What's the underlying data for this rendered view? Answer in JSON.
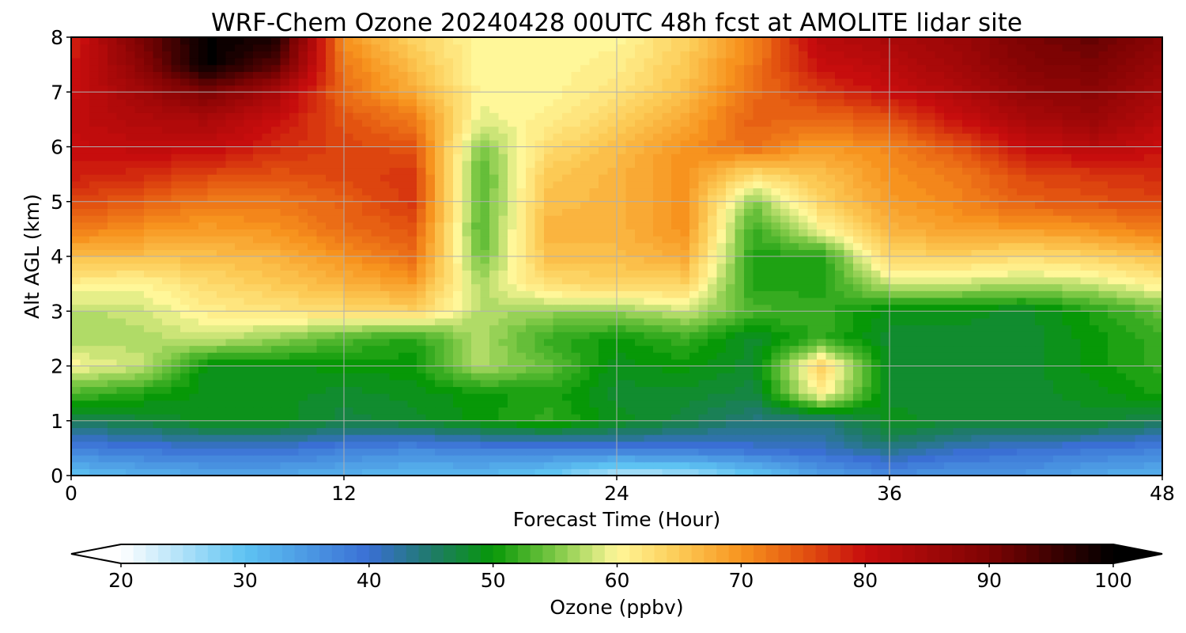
{
  "chart_data": {
    "type": "heatmap",
    "title": "WRF-Chem Ozone  20240428 00UTC 48h fcst at AMOLITE lidar site",
    "xlabel": "Forecast Time (Hour)",
    "ylabel": "Alt AGL (km)",
    "xlim": [
      0,
      48
    ],
    "ylim": [
      0,
      8
    ],
    "xticks": [
      "0",
      "12",
      "24",
      "36",
      "48"
    ],
    "yticks": [
      "0",
      "1",
      "2",
      "3",
      "4",
      "5",
      "6",
      "7",
      "8"
    ],
    "grid": true,
    "colorbar": {
      "label": "Ozone  (ppbv)",
      "min": 20,
      "max": 100,
      "extend": "both",
      "ticks": [
        "20",
        "30",
        "40",
        "50",
        "60",
        "70",
        "80",
        "90",
        "100"
      ],
      "stops": [
        {
          "value": 20,
          "color": "#ffffff"
        },
        {
          "value": 30,
          "color": "#5ec3f2"
        },
        {
          "value": 40,
          "color": "#3a6fd4"
        },
        {
          "value": 45,
          "color": "#1f7a6a"
        },
        {
          "value": 50,
          "color": "#079807"
        },
        {
          "value": 55,
          "color": "#7cc845"
        },
        {
          "value": 60,
          "color": "#fff799"
        },
        {
          "value": 65,
          "color": "#fcca55"
        },
        {
          "value": 70,
          "color": "#f7931e"
        },
        {
          "value": 75,
          "color": "#e35310"
        },
        {
          "value": 80,
          "color": "#c70d0d"
        },
        {
          "value": 90,
          "color": "#7d0303"
        },
        {
          "value": 100,
          "color": "#000000"
        }
      ]
    },
    "x_hours": [
      0,
      3,
      6,
      9,
      12,
      15,
      18,
      21,
      24,
      27,
      30,
      33,
      36,
      39,
      42,
      45,
      48
    ],
    "y_km": [
      0,
      0.5,
      1,
      1.5,
      2,
      2.5,
      3,
      3.5,
      4,
      4.5,
      5,
      5.5,
      6,
      6.5,
      7,
      7.5,
      8
    ],
    "z_ppbv": [
      [
        30,
        32,
        33,
        33,
        32,
        31,
        31,
        29,
        24,
        25,
        29,
        34,
        36,
        35,
        35,
        33,
        32
      ],
      [
        38,
        39,
        40,
        40,
        38,
        37,
        38,
        38,
        39,
        39,
        40,
        41,
        44,
        41,
        40,
        39,
        38
      ],
      [
        46,
        47,
        49,
        49,
        47,
        48,
        50,
        52,
        49,
        47,
        44,
        44,
        49,
        48,
        48,
        48,
        46
      ],
      [
        53,
        51,
        49,
        49,
        48,
        49,
        50,
        51,
        48,
        48,
        47,
        61,
        48,
        48,
        48,
        49,
        51
      ],
      [
        60,
        58,
        49,
        49,
        50,
        50,
        57,
        54,
        49,
        50,
        48,
        64,
        48,
        48,
        48,
        50,
        52
      ],
      [
        57,
        57,
        58,
        56,
        53,
        51,
        57,
        52,
        50,
        52,
        48,
        52,
        48,
        48,
        48,
        50,
        52
      ],
      [
        57,
        58,
        61,
        62,
        63,
        64,
        57,
        56,
        56,
        58,
        53,
        52,
        49,
        49,
        48,
        51,
        54
      ],
      [
        61,
        60,
        63,
        65,
        67,
        69,
        57,
        63,
        64,
        64,
        51,
        51,
        58,
        58,
        57,
        58,
        61
      ],
      [
        66,
        66,
        66,
        67,
        70,
        73,
        54,
        66,
        66,
        68,
        51,
        51,
        64,
        64,
        63,
        64,
        66
      ],
      [
        72,
        70,
        69,
        70,
        73,
        75,
        53,
        67,
        67,
        70,
        52,
        60,
        67,
        69,
        69,
        70,
        72
      ],
      [
        76,
        74,
        72,
        72,
        74,
        77,
        53,
        66,
        67,
        70,
        55,
        64,
        69,
        71,
        74,
        75,
        76
      ],
      [
        79,
        78,
        76,
        75,
        76,
        77,
        53,
        65,
        67,
        70,
        63,
        66,
        70,
        72,
        76,
        77,
        78
      ],
      [
        80,
        81,
        81,
        78,
        76,
        75,
        55,
        63,
        66,
        70,
        73,
        69,
        71,
        75,
        80,
        82,
        80
      ],
      [
        81,
        83,
        84,
        80,
        75,
        72,
        59,
        61,
        64,
        68,
        74,
        73,
        75,
        80,
        84,
        86,
        82
      ],
      [
        80,
        85,
        90,
        84,
        73,
        68,
        60,
        60,
        62,
        66,
        73,
        77,
        80,
        83,
        87,
        88,
        84
      ],
      [
        79,
        88,
        100,
        93,
        72,
        66,
        60,
        60,
        61,
        65,
        72,
        80,
        82,
        85,
        89,
        90,
        86
      ],
      [
        78,
        90,
        100,
        98,
        70,
        64,
        60,
        60,
        60,
        64,
        71,
        82,
        84,
        86,
        90,
        92,
        88
      ]
    ]
  }
}
